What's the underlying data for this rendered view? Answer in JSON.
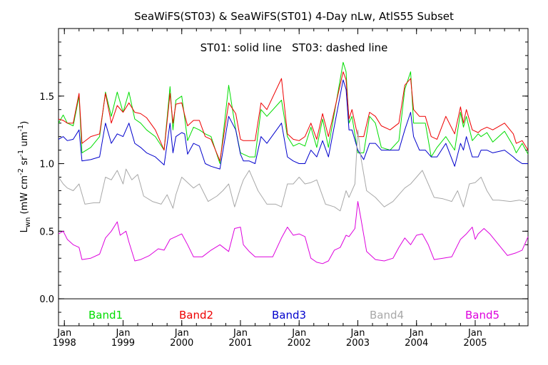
{
  "chart_data": {
    "type": "line",
    "title": "SeaWiFS(ST03) & SeaWiFS(ST01) 4-Day nLw, AtlS55 Subset",
    "annotation": "ST01: solid line   ST03: dashed line",
    "ylabel": {
      "main": "L",
      "sub": "wn",
      "unit_a": " (mW cm",
      "sup1": "-2",
      "unit_b": " sr",
      "sup2": "-1",
      "unit_c": " um",
      "sup3": "-1",
      "unit_d": ")"
    },
    "xlim": [
      1997.9,
      2005.9
    ],
    "ylim": [
      -0.2,
      2.0
    ],
    "y_ticks": [
      "0.0",
      "0.5",
      "1.0",
      "1.5"
    ],
    "x_month_labels": [
      "Jan",
      "Jan",
      "Jan",
      "Jan",
      "Jan",
      "Jan",
      "Jan",
      "Jan"
    ],
    "x_year_labels": [
      "1998",
      "1999",
      "2000",
      "2001",
      "2002",
      "2003",
      "2004",
      "2005"
    ],
    "zero_line": 0.0,
    "grid": false,
    "legend_position": "bottom (inside plot)",
    "series": [
      {
        "name": "Band1",
        "color": "#00dd00",
        "x": [
          1997.9,
          1997.98,
          1998.05,
          1998.15,
          1998.25,
          1998.3,
          1998.45,
          1998.6,
          1998.7,
          1998.8,
          1998.9,
          1999.0,
          1999.1,
          1999.2,
          1999.3,
          1999.4,
          1999.55,
          1999.7,
          1999.8,
          1999.85,
          1999.9,
          2000.0,
          2000.05,
          2000.1,
          2000.2,
          2000.3,
          2000.4,
          2000.5,
          2000.65,
          2000.8,
          2000.92,
          2001.0,
          2001.05,
          2001.15,
          2001.25,
          2001.35,
          2001.45,
          2001.7,
          2001.8,
          2001.9,
          2002.0,
          2002.1,
          2002.2,
          2002.3,
          2002.4,
          2002.5,
          2002.75,
          2002.8,
          2002.85,
          2002.9,
          2003.0,
          2003.1,
          2003.2,
          2003.3,
          2003.4,
          2003.55,
          2003.7,
          2003.8,
          2003.9,
          2003.95,
          2004.05,
          2004.15,
          2004.25,
          2004.35,
          2004.5,
          2004.65,
          2004.75,
          2004.8,
          2004.85,
          2004.95,
          2005.05,
          2005.1,
          2005.2,
          2005.3,
          2005.5,
          2005.65,
          2005.7,
          2005.8,
          2005.9
        ],
        "values": [
          1.3,
          1.36,
          1.3,
          1.28,
          1.5,
          1.08,
          1.12,
          1.2,
          1.53,
          1.35,
          1.53,
          1.38,
          1.53,
          1.33,
          1.3,
          1.25,
          1.2,
          1.1,
          1.57,
          1.25,
          1.47,
          1.5,
          1.34,
          1.17,
          1.27,
          1.25,
          1.22,
          1.2,
          1.0,
          1.58,
          1.25,
          1.08,
          1.07,
          1.05,
          1.05,
          1.4,
          1.35,
          1.47,
          1.2,
          1.13,
          1.15,
          1.13,
          1.27,
          1.12,
          1.33,
          1.12,
          1.75,
          1.68,
          1.3,
          1.35,
          1.08,
          1.08,
          1.35,
          1.3,
          1.12,
          1.1,
          1.17,
          1.55,
          1.68,
          1.3,
          1.3,
          1.3,
          1.05,
          1.12,
          1.2,
          1.1,
          1.38,
          1.27,
          1.35,
          1.17,
          1.22,
          1.2,
          1.23,
          1.16,
          1.24,
          1.13,
          1.08,
          1.15,
          1.07
        ]
      },
      {
        "name": "Band2",
        "color": "#ee0000",
        "x": [
          1997.9,
          1997.98,
          1998.05,
          1998.15,
          1998.25,
          1998.3,
          1998.45,
          1998.6,
          1998.7,
          1998.8,
          1998.9,
          1999.0,
          1999.1,
          1999.2,
          1999.3,
          1999.4,
          1999.55,
          1999.7,
          1999.8,
          1999.85,
          1999.9,
          2000.0,
          2000.05,
          2000.1,
          2000.2,
          2000.3,
          2000.4,
          2000.5,
          2000.65,
          2000.8,
          2000.92,
          2001.0,
          2001.05,
          2001.15,
          2001.25,
          2001.35,
          2001.45,
          2001.7,
          2001.8,
          2001.9,
          2002.0,
          2002.1,
          2002.2,
          2002.3,
          2002.4,
          2002.5,
          2002.75,
          2002.8,
          2002.85,
          2002.9,
          2003.0,
          2003.1,
          2003.2,
          2003.3,
          2003.4,
          2003.55,
          2003.7,
          2003.8,
          2003.9,
          2003.95,
          2004.05,
          2004.15,
          2004.25,
          2004.35,
          2004.5,
          2004.65,
          2004.75,
          2004.8,
          2004.85,
          2004.95,
          2005.05,
          2005.1,
          2005.2,
          2005.3,
          2005.5,
          2005.65,
          2005.7,
          2005.8,
          2005.9
        ],
        "values": [
          1.33,
          1.32,
          1.3,
          1.3,
          1.52,
          1.15,
          1.2,
          1.22,
          1.52,
          1.3,
          1.43,
          1.38,
          1.45,
          1.38,
          1.37,
          1.34,
          1.25,
          1.1,
          1.52,
          1.3,
          1.44,
          1.45,
          1.36,
          1.28,
          1.32,
          1.32,
          1.2,
          1.18,
          1.02,
          1.45,
          1.37,
          1.18,
          1.17,
          1.17,
          1.17,
          1.45,
          1.4,
          1.63,
          1.22,
          1.18,
          1.17,
          1.2,
          1.3,
          1.18,
          1.37,
          1.2,
          1.68,
          1.62,
          1.33,
          1.4,
          1.2,
          1.2,
          1.38,
          1.35,
          1.28,
          1.25,
          1.3,
          1.58,
          1.63,
          1.4,
          1.35,
          1.35,
          1.2,
          1.18,
          1.35,
          1.22,
          1.42,
          1.3,
          1.4,
          1.25,
          1.23,
          1.25,
          1.27,
          1.25,
          1.3,
          1.22,
          1.15,
          1.17,
          1.1
        ]
      },
      {
        "name": "Band3",
        "color": "#0000cc",
        "x": [
          1997.9,
          1997.98,
          1998.05,
          1998.15,
          1998.25,
          1998.3,
          1998.45,
          1998.6,
          1998.7,
          1998.8,
          1998.9,
          1999.0,
          1999.1,
          1999.2,
          1999.3,
          1999.4,
          1999.55,
          1999.7,
          1999.8,
          1999.85,
          1999.9,
          2000.0,
          2000.05,
          2000.1,
          2000.2,
          2000.3,
          2000.4,
          2000.5,
          2000.65,
          2000.8,
          2000.92,
          2001.0,
          2001.05,
          2001.15,
          2001.25,
          2001.35,
          2001.45,
          2001.7,
          2001.8,
          2001.9,
          2002.0,
          2002.1,
          2002.2,
          2002.3,
          2002.4,
          2002.5,
          2002.75,
          2002.8,
          2002.85,
          2002.9,
          2003.0,
          2003.1,
          2003.2,
          2003.3,
          2003.4,
          2003.55,
          2003.7,
          2003.8,
          2003.9,
          2003.95,
          2004.05,
          2004.15,
          2004.25,
          2004.35,
          2004.5,
          2004.65,
          2004.75,
          2004.8,
          2004.85,
          2004.95,
          2005.05,
          2005.1,
          2005.2,
          2005.3,
          2005.5,
          2005.65,
          2005.7,
          2005.8,
          2005.9
        ],
        "values": [
          1.18,
          1.2,
          1.17,
          1.18,
          1.25,
          1.02,
          1.03,
          1.05,
          1.3,
          1.15,
          1.22,
          1.2,
          1.3,
          1.15,
          1.12,
          1.08,
          1.05,
          0.99,
          1.3,
          1.08,
          1.2,
          1.23,
          1.22,
          1.07,
          1.15,
          1.13,
          1.0,
          0.98,
          0.96,
          1.35,
          1.25,
          1.07,
          1.02,
          1.02,
          1.0,
          1.2,
          1.15,
          1.3,
          1.05,
          1.02,
          1.0,
          1.0,
          1.1,
          1.05,
          1.17,
          1.05,
          1.62,
          1.55,
          1.25,
          1.25,
          1.1,
          1.03,
          1.15,
          1.15,
          1.1,
          1.1,
          1.1,
          1.25,
          1.38,
          1.2,
          1.1,
          1.1,
          1.05,
          1.05,
          1.15,
          0.98,
          1.15,
          1.1,
          1.2,
          1.05,
          1.05,
          1.1,
          1.1,
          1.08,
          1.1,
          1.05,
          1.03,
          1.0,
          1.0
        ]
      },
      {
        "name": "Band4",
        "color": "#a8a8a8",
        "x": [
          1997.9,
          1997.98,
          1998.05,
          1998.15,
          1998.25,
          1998.35,
          1998.5,
          1998.6,
          1998.7,
          1998.8,
          1998.9,
          1999.0,
          1999.05,
          1999.15,
          1999.25,
          1999.35,
          1999.5,
          1999.65,
          1999.75,
          1999.85,
          1999.9,
          2000.0,
          2000.1,
          2000.2,
          2000.3,
          2000.45,
          2000.6,
          2000.7,
          2000.8,
          2000.9,
          2001.0,
          2001.05,
          2001.15,
          2001.3,
          2001.45,
          2001.6,
          2001.7,
          2001.8,
          2001.9,
          2002.0,
          2002.1,
          2002.2,
          2002.3,
          2002.45,
          2002.6,
          2002.7,
          2002.8,
          2002.85,
          2002.95,
          2003.0,
          2003.05,
          2003.15,
          2003.3,
          2003.45,
          2003.6,
          2003.7,
          2003.8,
          2003.9,
          2004.0,
          2004.1,
          2004.2,
          2004.3,
          2004.45,
          2004.6,
          2004.7,
          2004.8,
          2004.9,
          2005.0,
          2005.1,
          2005.2,
          2005.3,
          2005.4,
          2005.6,
          2005.75,
          2005.85,
          2005.9
        ],
        "values": [
          0.9,
          0.85,
          0.82,
          0.8,
          0.85,
          0.7,
          0.71,
          0.71,
          0.9,
          0.88,
          0.95,
          0.85,
          0.96,
          0.88,
          0.92,
          0.76,
          0.72,
          0.7,
          0.77,
          0.67,
          0.77,
          0.9,
          0.86,
          0.82,
          0.85,
          0.72,
          0.76,
          0.8,
          0.85,
          0.68,
          0.82,
          0.88,
          0.95,
          0.8,
          0.7,
          0.7,
          0.68,
          0.85,
          0.85,
          0.9,
          0.85,
          0.86,
          0.88,
          0.7,
          0.68,
          0.65,
          0.8,
          0.75,
          0.85,
          1.25,
          1.05,
          0.8,
          0.75,
          0.68,
          0.72,
          0.77,
          0.82,
          0.85,
          0.9,
          0.95,
          0.85,
          0.75,
          0.74,
          0.72,
          0.8,
          0.68,
          0.85,
          0.86,
          0.9,
          0.8,
          0.73,
          0.73,
          0.72,
          0.73,
          0.72,
          0.76
        ]
      },
      {
        "name": "Band5",
        "color": "#dd00dd",
        "x": [
          1997.9,
          1997.98,
          1998.05,
          1998.15,
          1998.25,
          1998.3,
          1998.45,
          1998.6,
          1998.7,
          1998.8,
          1998.9,
          1998.95,
          1999.05,
          1999.1,
          1999.2,
          1999.3,
          1999.45,
          1999.6,
          1999.7,
          1999.8,
          1999.9,
          2000.0,
          2000.1,
          2000.2,
          2000.35,
          2000.5,
          2000.65,
          2000.8,
          2000.9,
          2001.0,
          2001.05,
          2001.15,
          2001.25,
          2001.4,
          2001.55,
          2001.7,
          2001.8,
          2001.9,
          2002.0,
          2002.1,
          2002.2,
          2002.3,
          2002.4,
          2002.5,
          2002.6,
          2002.7,
          2002.8,
          2002.85,
          2002.95,
          2003.0,
          2003.05,
          2003.15,
          2003.3,
          2003.45,
          2003.6,
          2003.7,
          2003.8,
          2003.9,
          2004.0,
          2004.1,
          2004.2,
          2004.3,
          2004.45,
          2004.6,
          2004.75,
          2004.85,
          2004.95,
          2005.0,
          2005.05,
          2005.15,
          2005.25,
          2005.4,
          2005.55,
          2005.7,
          2005.8,
          2005.9
        ],
        "values": [
          0.48,
          0.5,
          0.44,
          0.4,
          0.38,
          0.29,
          0.3,
          0.33,
          0.45,
          0.5,
          0.57,
          0.47,
          0.5,
          0.42,
          0.28,
          0.29,
          0.32,
          0.37,
          0.36,
          0.44,
          0.46,
          0.48,
          0.4,
          0.31,
          0.31,
          0.36,
          0.4,
          0.35,
          0.52,
          0.53,
          0.4,
          0.35,
          0.31,
          0.31,
          0.31,
          0.45,
          0.53,
          0.47,
          0.48,
          0.46,
          0.3,
          0.27,
          0.26,
          0.28,
          0.36,
          0.38,
          0.47,
          0.46,
          0.52,
          0.72,
          0.6,
          0.35,
          0.29,
          0.28,
          0.3,
          0.38,
          0.45,
          0.4,
          0.47,
          0.48,
          0.4,
          0.29,
          0.3,
          0.31,
          0.44,
          0.48,
          0.53,
          0.44,
          0.48,
          0.52,
          0.48,
          0.4,
          0.32,
          0.34,
          0.36,
          0.46
        ]
      }
    ]
  }
}
